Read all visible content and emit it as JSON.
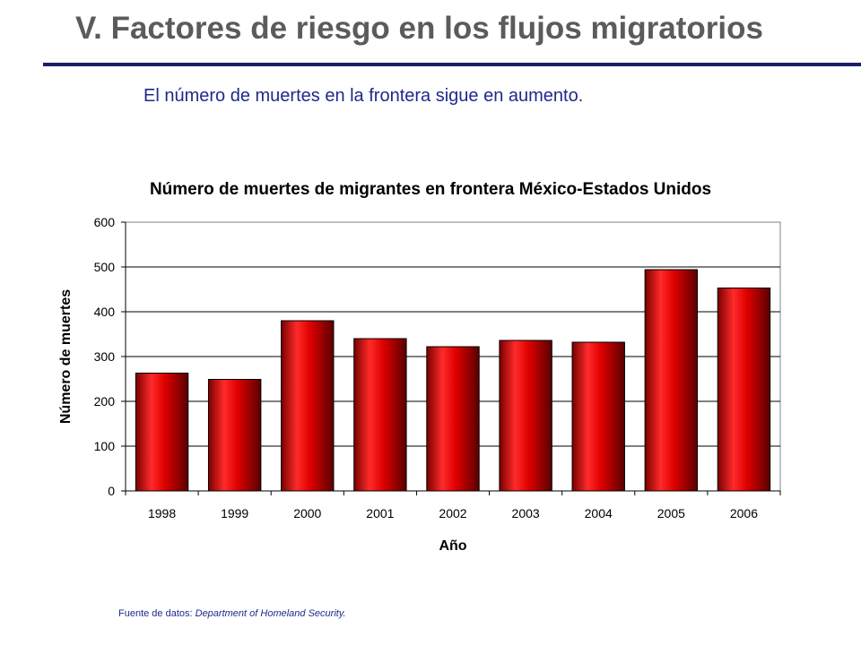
{
  "slide": {
    "title": "V. Factores de riesgo en los flujos migratorios",
    "subtitle": "El número de muertes en la frontera sigue en aumento.",
    "source_prefix": "Fuente de datos: ",
    "source_name": "Department of Homeland Security."
  },
  "colors": {
    "title": "#5b5b5b",
    "rule": "#1c1c6b",
    "text_blue": "#1e2a8a",
    "bar": "#d10000",
    "bar_dark": "#5a0000",
    "bar_light": "#ff3030"
  },
  "chart_data": {
    "type": "bar",
    "title": "Número de muertes de migrantes en frontera México-Estados Unidos",
    "xlabel": "Año",
    "ylabel": "Número de muertes",
    "categories": [
      "1998",
      "1999",
      "2000",
      "2001",
      "2002",
      "2003",
      "2004",
      "2005",
      "2006"
    ],
    "values": [
      263,
      249,
      380,
      340,
      322,
      336,
      332,
      494,
      453
    ],
    "ylim": [
      0,
      600
    ],
    "yticks": [
      0,
      100,
      200,
      300,
      400,
      500,
      600
    ],
    "grid": true,
    "legend": "none"
  }
}
